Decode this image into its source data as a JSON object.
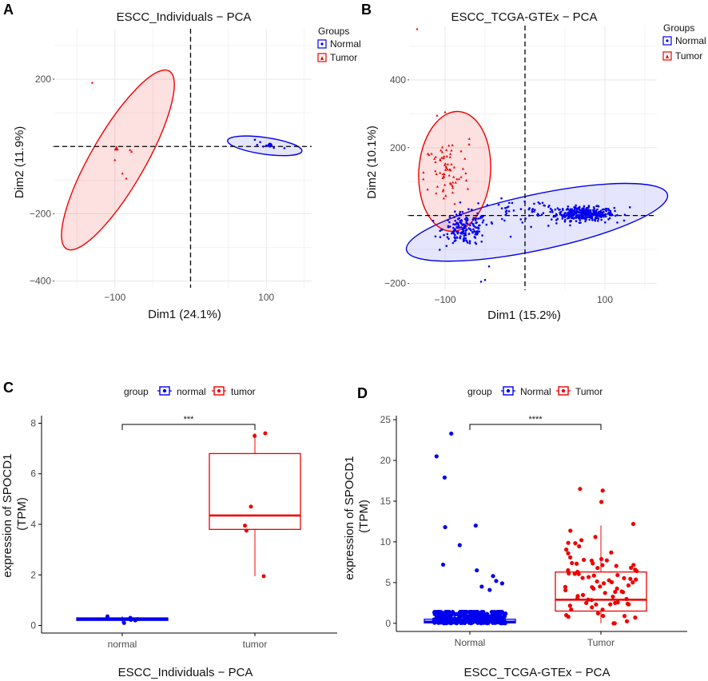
{
  "chart_data": [
    {
      "panel": "A",
      "type": "scatter",
      "title": "ESCC_Individuals − PCA",
      "xlabel": "Dim1 (24.1%)",
      "ylabel": "Dim2 (11.9%)",
      "xlim": [
        -180,
        160
      ],
      "ylim": [
        -420,
        350
      ],
      "xticks": [
        -100,
        0,
        100
      ],
      "xticklabels": [
        "−100",
        "",
        "100"
      ],
      "yticks": [
        200,
        0,
        -200,
        -400
      ],
      "yticklabels": [
        "200",
        "",
        "−200",
        "−400"
      ],
      "legend": {
        "title": "Groups",
        "entries": [
          "Normal",
          "Tumor"
        ],
        "placement": "top-right"
      },
      "series": [
        {
          "name": "Normal",
          "color": "#0000ee",
          "points": [
            [
              85,
              20
            ],
            [
              92,
              13
            ],
            [
              96,
              0
            ],
            [
              100,
              3
            ],
            [
              105,
              8
            ],
            [
              110,
              -4
            ],
            [
              124,
              -5
            ],
            [
              101,
              2
            ],
            [
              88,
              5
            ]
          ],
          "centroid": [
            105,
            4
          ],
          "ellipse": {
            "cx": 98,
            "cy": 2,
            "rx": 50,
            "ry": 50,
            "angle": -8,
            "scale_x": 1.0,
            "scale_y": 0.48
          }
        },
        {
          "name": "Tumor",
          "color": "#ee0000",
          "points": [
            [
              -130,
              190
            ],
            [
              -98,
              -2
            ],
            [
              -97,
              -8
            ],
            [
              -100,
              -40
            ],
            [
              -90,
              -80
            ],
            [
              -85,
              -95
            ],
            [
              -78,
              -15
            ],
            [
              -80,
              -10
            ]
          ],
          "centroid": [
            -98,
            -6
          ],
          "ellipse": {
            "cx": -96,
            "cy": -40,
            "rx": 215,
            "ry": 40,
            "angle": 60
          }
        }
      ]
    },
    {
      "panel": "B",
      "type": "scatter",
      "title": "ESCC_TCGA-GTEx − PCA",
      "xlabel": "Dim1 (15.2%)",
      "ylabel": "Dim2 (10.1%)",
      "xlim": [
        -145,
        165
      ],
      "ylim": [
        -220,
        560
      ],
      "xticks": [
        -100,
        0,
        100
      ],
      "xticklabels": [
        "−100",
        "",
        "100"
      ],
      "yticks": [
        400,
        200,
        0,
        -200
      ],
      "yticklabels": [
        "400",
        "200",
        "",
        "−200"
      ],
      "legend": {
        "title": "Groups",
        "entries": [
          "Normal",
          "Tumor"
        ],
        "placement": "top-right"
      },
      "series": [
        {
          "name": "Normal",
          "color": "#0000ee",
          "clusters": [
            {
              "n": 330,
              "cx": 75,
              "cy": 5,
              "sx": 18,
              "sy": 10
            },
            {
              "n": 170,
              "cx": -75,
              "cy": -40,
              "sx": 14,
              "sy": 24
            },
            {
              "n": 70,
              "cx": 5,
              "cy": 10,
              "sx": 40,
              "sy": 18
            }
          ],
          "outliers": [
            [
              -50,
              -190
            ],
            [
              -55,
              -195
            ],
            [
              -45,
              -150
            ]
          ],
          "ellipse": {
            "cx": 15,
            "cy": -20,
            "rx": 170,
            "ry": 75,
            "angle": 12
          }
        },
        {
          "name": "Tumor",
          "color": "#ee0000",
          "clusters": [
            {
              "n": 70,
              "cx": -98,
              "cy": 125,
              "sx": 14,
              "sy": 50
            }
          ],
          "outliers": [
            [
              -135,
              550
            ],
            [
              -100,
              305
            ],
            [
              -110,
              295
            ],
            [
              -70,
              210
            ],
            [
              -80,
              190
            ]
          ],
          "ellipse": {
            "cx": -88,
            "cy": 130,
            "rx": 45,
            "ry": 175,
            "angle": -4
          }
        }
      ]
    },
    {
      "panel": "C",
      "type": "box",
      "title": "",
      "xlabel": "ESCC_Individuals − PCA",
      "ylabel": "expression of SPOCD1\n(TPM)",
      "categories": [
        "normal",
        "tumor"
      ],
      "ylim": [
        -0.3,
        8.3
      ],
      "yticks": [
        0,
        2,
        4,
        6,
        8
      ],
      "legend": {
        "title": "group",
        "entries": [
          "normal",
          "tumor"
        ],
        "placement": "top"
      },
      "significance": "***",
      "series": [
        {
          "name": "normal",
          "color": "#0000ee",
          "box": {
            "min": 0.1,
            "q1": 0.2,
            "median": 0.25,
            "q3": 0.3,
            "max": 0.36
          },
          "points": [
            0.1,
            0.22,
            0.25,
            0.3,
            0.36,
            0.2
          ]
        },
        {
          "name": "tumor",
          "color": "#ee0000",
          "box": {
            "min": 1.95,
            "q1": 3.8,
            "median": 4.35,
            "q3": 6.8,
            "max": 7.6
          },
          "points": [
            7.6,
            7.5,
            4.7,
            3.95,
            3.75,
            1.95
          ]
        }
      ]
    },
    {
      "panel": "D",
      "type": "box",
      "title": "",
      "xlabel": "ESCC_TCGA-GTEx − PCA",
      "ylabel": "expression of SPOCD1\n(TPM)",
      "categories": [
        "Normal",
        "Tumor"
      ],
      "ylim": [
        -1,
        25.5
      ],
      "yticks": [
        0,
        5,
        10,
        15,
        20,
        25
      ],
      "legend": {
        "title": "group",
        "entries": [
          "Normal",
          "Tumor"
        ],
        "placement": "top"
      },
      "significance": "****",
      "series": [
        {
          "name": "Normal",
          "color": "#0000ee",
          "box": {
            "min": 0,
            "q1": 0.05,
            "median": 0.2,
            "q3": 0.5,
            "max": 1.2
          },
          "n_points": 330,
          "outliers": [
            23.3,
            20.5,
            17.9,
            12,
            11.8,
            9.6,
            7.2,
            6.5,
            5.8,
            5.2,
            4.9,
            4.5,
            4.1
          ]
        },
        {
          "name": "Tumor",
          "color": "#ee0000",
          "box": {
            "min": 0,
            "q1": 1.5,
            "median": 2.9,
            "q3": 6.3,
            "max": 12
          },
          "n_points": 80,
          "outliers": [
            16.5,
            16.3,
            14.9
          ]
        }
      ]
    }
  ],
  "panels": {
    "A": {
      "letter": "A"
    },
    "B": {
      "letter": "B"
    },
    "C": {
      "letter": "C"
    },
    "D": {
      "letter": "D"
    }
  }
}
